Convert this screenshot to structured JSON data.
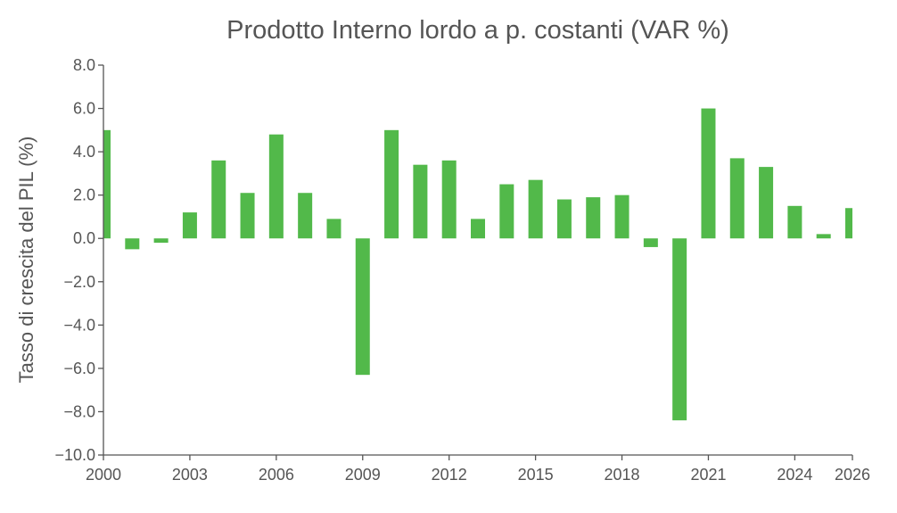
{
  "chart_data": {
    "type": "bar",
    "title": "Prodotto Interno lordo a p. costanti (VAR %)",
    "xlabel": "",
    "ylabel": "Tasso di crescita del PIL (%)",
    "x": [
      2000,
      2001,
      2002,
      2003,
      2004,
      2005,
      2006,
      2007,
      2008,
      2009,
      2010,
      2011,
      2012,
      2013,
      2014,
      2015,
      2016,
      2017,
      2018,
      2019,
      2020,
      2021,
      2022,
      2023,
      2024,
      2025,
      2026
    ],
    "values": [
      5.0,
      -0.5,
      -0.2,
      1.2,
      3.6,
      2.1,
      4.8,
      2.1,
      0.9,
      -6.3,
      5.0,
      3.4,
      3.6,
      0.9,
      2.5,
      2.7,
      1.8,
      1.9,
      2.0,
      -0.4,
      -8.4,
      6.0,
      3.7,
      3.3,
      1.5,
      0.2,
      1.4
    ],
    "ylim": [
      -10,
      8
    ],
    "yticks": [
      "8.0",
      "6.0",
      "4.0",
      "2.0",
      "0.0",
      "−2.0",
      "−4.0",
      "−6.0",
      "−8.0",
      "−10.0"
    ],
    "ytick_values": [
      8,
      6,
      4,
      2,
      0,
      -2,
      -4,
      -6,
      -8,
      -10
    ],
    "xticks": [
      "2000",
      "2003",
      "2006",
      "2009",
      "2012",
      "2015",
      "2018",
      "2021",
      "2024",
      "2026"
    ],
    "xtick_values": [
      2000,
      2003,
      2006,
      2009,
      2012,
      2015,
      2018,
      2021,
      2024,
      2026
    ],
    "bar_color": "#52b94a",
    "axis_color": "#555555",
    "grid": false,
    "legend": "none"
  }
}
